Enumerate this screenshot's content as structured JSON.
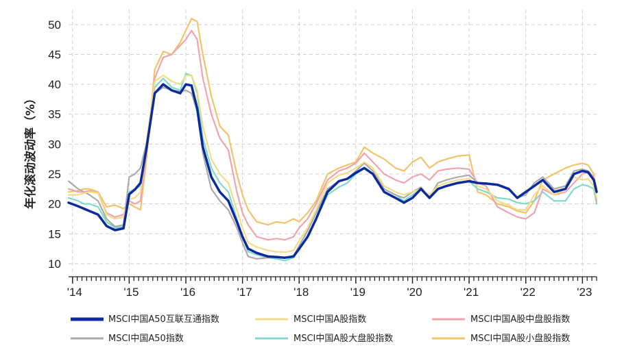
{
  "chart_data": {
    "type": "line",
    "title": "",
    "xlabel": "",
    "ylabel": "年化滚动波动率（%）",
    "ylim": [
      8.5,
      52.5
    ],
    "yticks": [
      10,
      15,
      20,
      25,
      30,
      35,
      40,
      45,
      50
    ],
    "xlim": [
      2013.93,
      2023.25
    ],
    "xticks": [
      {
        "value": 2014.0,
        "label": "'14"
      },
      {
        "value": 2015.0,
        "label": "'15"
      },
      {
        "value": 2016.0,
        "label": "'16"
      },
      {
        "value": 2017.0,
        "label": "'17"
      },
      {
        "value": 2018.0,
        "label": "'18"
      },
      {
        "value": 2019.0,
        "label": "'19"
      },
      {
        "value": 2020.0,
        "label": "'20"
      },
      {
        "value": 2021.0,
        "label": "'21"
      },
      {
        "value": 2022.0,
        "label": "'22"
      },
      {
        "value": 2023.0,
        "label": "'23"
      }
    ],
    "grid": true,
    "legend_position": "bottom",
    "series": [
      {
        "name": "MSCI中国A50互联互通指数",
        "color": "#0a2a9e",
        "x": [
          2013.93,
          2014.1,
          2014.2,
          2014.3,
          2014.45,
          2014.6,
          2014.75,
          2014.9,
          2015.0,
          2015.1,
          2015.2,
          2015.3,
          2015.45,
          2015.6,
          2015.75,
          2015.9,
          2016.0,
          2016.1,
          2016.2,
          2016.3,
          2016.45,
          2016.6,
          2016.75,
          2016.9,
          2017.0,
          2017.1,
          2017.25,
          2017.45,
          2017.6,
          2017.75,
          2017.9,
          2018.0,
          2018.15,
          2018.3,
          2018.5,
          2018.7,
          2018.85,
          2019.0,
          2019.15,
          2019.3,
          2019.5,
          2019.7,
          2019.85,
          2020.0,
          2020.15,
          2020.3,
          2020.45,
          2020.6,
          2020.8,
          2021.0,
          2021.15,
          2021.3,
          2021.5,
          2021.7,
          2021.85,
          2022.0,
          2022.15,
          2022.3,
          2022.5,
          2022.7,
          2022.85,
          2023.0,
          2023.1,
          2023.2,
          2023.25
        ],
        "y": [
          20.2,
          19.6,
          19.2,
          18.8,
          18.2,
          16.3,
          15.6,
          15.9,
          21.6,
          22.4,
          23.5,
          29.0,
          38.5,
          40.0,
          39.0,
          38.5,
          40.0,
          39.8,
          36.0,
          29.5,
          24.5,
          22.0,
          20.5,
          17.0,
          14.5,
          12.5,
          11.8,
          11.2,
          11.1,
          11.0,
          11.2,
          12.5,
          14.5,
          17.5,
          22.0,
          23.8,
          24.2,
          25.2,
          26.0,
          25.0,
          22.0,
          21.0,
          20.2,
          21.0,
          22.5,
          21.0,
          22.5,
          23.0,
          23.5,
          23.8,
          23.5,
          23.4,
          23.2,
          22.5,
          21.0,
          22.0,
          23.0,
          24.0,
          22.0,
          22.5,
          25.0,
          25.5,
          25.3,
          24.0,
          22.0
        ]
      },
      {
        "name": "MSCI中国A股指数",
        "color": "#f2dc8a",
        "x": [
          2013.93,
          2014.1,
          2014.2,
          2014.3,
          2014.45,
          2014.6,
          2014.75,
          2014.9,
          2015.0,
          2015.1,
          2015.2,
          2015.3,
          2015.45,
          2015.6,
          2015.75,
          2015.9,
          2016.0,
          2016.1,
          2016.2,
          2016.3,
          2016.45,
          2016.6,
          2016.75,
          2016.9,
          2017.0,
          2017.1,
          2017.25,
          2017.45,
          2017.6,
          2017.75,
          2017.9,
          2018.0,
          2018.15,
          2018.3,
          2018.5,
          2018.7,
          2018.85,
          2019.0,
          2019.15,
          2019.3,
          2019.5,
          2019.7,
          2019.85,
          2020.0,
          2020.15,
          2020.3,
          2020.45,
          2020.6,
          2020.8,
          2021.0,
          2021.15,
          2021.3,
          2021.5,
          2021.7,
          2021.85,
          2022.0,
          2022.15,
          2022.3,
          2022.5,
          2022.7,
          2022.85,
          2023.0,
          2023.1,
          2023.2,
          2023.25
        ],
        "y": [
          21.5,
          21.5,
          21.8,
          22.0,
          21.8,
          18.2,
          17.5,
          17.8,
          20.8,
          21.0,
          22.0,
          30.0,
          40.5,
          41.5,
          40.5,
          40.0,
          41.5,
          41.5,
          39.0,
          33.0,
          27.5,
          25.0,
          23.5,
          19.0,
          16.0,
          13.5,
          12.8,
          12.2,
          12.0,
          11.9,
          12.2,
          13.8,
          16.0,
          19.0,
          23.5,
          24.8,
          25.2,
          26.0,
          27.0,
          26.0,
          23.0,
          22.0,
          21.5,
          22.0,
          22.5,
          21.5,
          23.0,
          23.5,
          24.0,
          24.2,
          23.0,
          22.5,
          20.5,
          19.8,
          19.0,
          19.0,
          21.5,
          23.0,
          21.5,
          22.5,
          24.5,
          24.0,
          24.2,
          23.0,
          21.0
        ]
      },
      {
        "name": "MSCI中国A股中盘股指数",
        "color": "#f0a4ae",
        "x": [
          2013.93,
          2014.1,
          2014.2,
          2014.3,
          2014.45,
          2014.6,
          2014.75,
          2014.9,
          2015.0,
          2015.1,
          2015.2,
          2015.3,
          2015.45,
          2015.6,
          2015.75,
          2015.9,
          2016.0,
          2016.1,
          2016.2,
          2016.3,
          2016.45,
          2016.6,
          2016.75,
          2016.9,
          2017.0,
          2017.1,
          2017.25,
          2017.45,
          2017.6,
          2017.75,
          2017.9,
          2018.0,
          2018.15,
          2018.3,
          2018.5,
          2018.7,
          2018.85,
          2019.0,
          2019.15,
          2019.3,
          2019.5,
          2019.7,
          2019.85,
          2020.0,
          2020.15,
          2020.3,
          2020.45,
          2020.6,
          2020.8,
          2021.0,
          2021.15,
          2021.3,
          2021.5,
          2021.7,
          2021.85,
          2022.0,
          2022.15,
          2022.3,
          2022.5,
          2022.7,
          2022.85,
          2023.0,
          2023.1,
          2023.2,
          2023.25
        ],
        "y": [
          22.5,
          22.0,
          22.0,
          22.2,
          21.8,
          18.5,
          17.8,
          18.2,
          20.5,
          20.0,
          20.5,
          29.0,
          41.0,
          44.5,
          45.0,
          46.5,
          47.5,
          49.0,
          47.5,
          41.0,
          35.0,
          31.0,
          29.0,
          22.0,
          18.5,
          16.5,
          14.5,
          14.0,
          14.2,
          14.0,
          14.5,
          16.0,
          17.5,
          20.0,
          24.0,
          25.5,
          26.0,
          26.8,
          28.5,
          27.0,
          25.0,
          24.0,
          23.5,
          24.5,
          25.0,
          24.0,
          25.5,
          25.8,
          26.0,
          25.8,
          23.5,
          23.0,
          19.5,
          18.5,
          17.8,
          17.5,
          18.5,
          22.5,
          21.5,
          22.0,
          23.5,
          25.0,
          25.3,
          24.5,
          20.5
        ]
      },
      {
        "name": "MSCI中国A50指数",
        "color": "#aaaaaa",
        "x": [
          2013.93,
          2014.1,
          2014.2,
          2014.3,
          2014.45,
          2014.6,
          2014.75,
          2014.9,
          2015.0,
          2015.1,
          2015.2,
          2015.3,
          2015.45,
          2015.6,
          2015.75,
          2015.9,
          2016.0,
          2016.1,
          2016.2,
          2016.3,
          2016.45,
          2016.6,
          2016.75,
          2016.9,
          2017.0,
          2017.1,
          2017.25,
          2017.45,
          2017.6,
          2017.75,
          2017.9,
          2018.0,
          2018.15,
          2018.3,
          2018.5,
          2018.7,
          2018.85,
          2019.0,
          2019.15,
          2019.3,
          2019.5,
          2019.7,
          2019.85,
          2020.0,
          2020.15,
          2020.3,
          2020.45,
          2020.6,
          2020.8,
          2021.0,
          2021.15,
          2021.3,
          2021.5,
          2021.7,
          2021.85,
          2022.0,
          2022.15,
          2022.3,
          2022.5,
          2022.7,
          2022.85,
          2023.0,
          2023.1,
          2023.2,
          2023.25
        ],
        "y": [
          23.8,
          22.5,
          22.0,
          21.5,
          20.5,
          17.5,
          16.2,
          16.5,
          24.5,
          25.0,
          26.0,
          30.0,
          38.5,
          39.5,
          39.0,
          38.8,
          39.0,
          38.5,
          35.5,
          28.5,
          22.5,
          20.5,
          19.0,
          16.0,
          13.5,
          11.2,
          10.8,
          11.0,
          11.2,
          11.0,
          11.3,
          13.0,
          15.5,
          18.5,
          22.5,
          23.8,
          24.2,
          25.5,
          26.8,
          25.5,
          22.5,
          21.5,
          21.0,
          22.0,
          22.8,
          21.2,
          23.5,
          24.0,
          24.5,
          24.8,
          23.5,
          23.5,
          23.2,
          22.5,
          21.0,
          21.5,
          23.5,
          24.5,
          22.5,
          23.0,
          25.5,
          25.8,
          25.5,
          24.5,
          22.5
        ]
      },
      {
        "name": "MSCI中国A股大盘股指数",
        "color": "#7fd9cc",
        "x": [
          2013.93,
          2014.1,
          2014.2,
          2014.3,
          2014.45,
          2014.6,
          2014.75,
          2014.9,
          2015.0,
          2015.1,
          2015.2,
          2015.3,
          2015.45,
          2015.6,
          2015.75,
          2015.9,
          2016.0,
          2016.1,
          2016.2,
          2016.3,
          2016.45,
          2016.6,
          2016.75,
          2016.9,
          2017.0,
          2017.1,
          2017.25,
          2017.45,
          2017.6,
          2017.75,
          2017.9,
          2018.0,
          2018.15,
          2018.3,
          2018.5,
          2018.7,
          2018.85,
          2019.0,
          2019.15,
          2019.3,
          2019.5,
          2019.7,
          2019.85,
          2020.0,
          2020.15,
          2020.3,
          2020.45,
          2020.6,
          2020.8,
          2021.0,
          2021.15,
          2021.3,
          2021.5,
          2021.7,
          2021.85,
          2022.0,
          2022.15,
          2022.3,
          2022.5,
          2022.7,
          2022.85,
          2023.0,
          2023.1,
          2023.2,
          2023.25
        ],
        "y": [
          21.0,
          20.5,
          20.0,
          20.0,
          19.5,
          17.0,
          16.0,
          16.2,
          22.0,
          22.5,
          23.0,
          30.0,
          39.5,
          41.0,
          39.5,
          39.0,
          41.8,
          41.5,
          38.5,
          31.0,
          26.0,
          23.5,
          22.0,
          17.5,
          14.5,
          12.0,
          11.5,
          11.0,
          10.8,
          10.5,
          11.0,
          12.5,
          14.5,
          17.5,
          21.5,
          22.8,
          23.5,
          25.0,
          26.0,
          25.0,
          22.5,
          21.5,
          20.5,
          21.5,
          22.5,
          21.0,
          22.5,
          23.0,
          23.5,
          23.8,
          22.5,
          22.0,
          21.0,
          20.8,
          20.2,
          20.0,
          20.5,
          22.0,
          20.5,
          20.5,
          22.5,
          23.2,
          23.0,
          22.5,
          20.0
        ]
      },
      {
        "name": "MSCI中国A股小盘股指数",
        "color": "#f2c46a",
        "x": [
          2013.93,
          2014.1,
          2014.2,
          2014.3,
          2014.45,
          2014.6,
          2014.75,
          2014.9,
          2015.0,
          2015.1,
          2015.2,
          2015.3,
          2015.45,
          2015.6,
          2015.75,
          2015.9,
          2016.0,
          2016.1,
          2016.2,
          2016.3,
          2016.45,
          2016.6,
          2016.75,
          2016.9,
          2017.0,
          2017.1,
          2017.25,
          2017.45,
          2017.6,
          2017.75,
          2017.9,
          2018.0,
          2018.15,
          2018.3,
          2018.5,
          2018.7,
          2018.85,
          2019.0,
          2019.15,
          2019.3,
          2019.5,
          2019.7,
          2019.85,
          2020.0,
          2020.15,
          2020.3,
          2020.45,
          2020.6,
          2020.8,
          2021.0,
          2021.15,
          2021.3,
          2021.5,
          2021.7,
          2021.85,
          2022.0,
          2022.15,
          2022.3,
          2022.5,
          2022.7,
          2022.85,
          2023.0,
          2023.1,
          2023.2,
          2023.25
        ],
        "y": [
          22.0,
          22.2,
          22.5,
          22.5,
          22.0,
          19.5,
          19.8,
          19.2,
          20.0,
          19.5,
          19.0,
          27.0,
          42.5,
          45.5,
          45.0,
          47.0,
          49.0,
          51.0,
          50.5,
          45.0,
          38.0,
          33.0,
          31.5,
          25.0,
          21.5,
          19.0,
          17.0,
          16.5,
          17.0,
          16.8,
          17.5,
          17.0,
          18.5,
          20.5,
          25.0,
          26.0,
          26.5,
          27.0,
          29.5,
          28.5,
          27.5,
          26.0,
          25.5,
          27.0,
          27.8,
          26.0,
          27.0,
          27.5,
          28.0,
          28.2,
          22.0,
          21.5,
          20.0,
          19.5,
          18.8,
          18.5,
          20.5,
          24.0,
          25.0,
          26.0,
          26.5,
          26.8,
          26.5,
          25.0,
          20.0
        ]
      }
    ]
  }
}
